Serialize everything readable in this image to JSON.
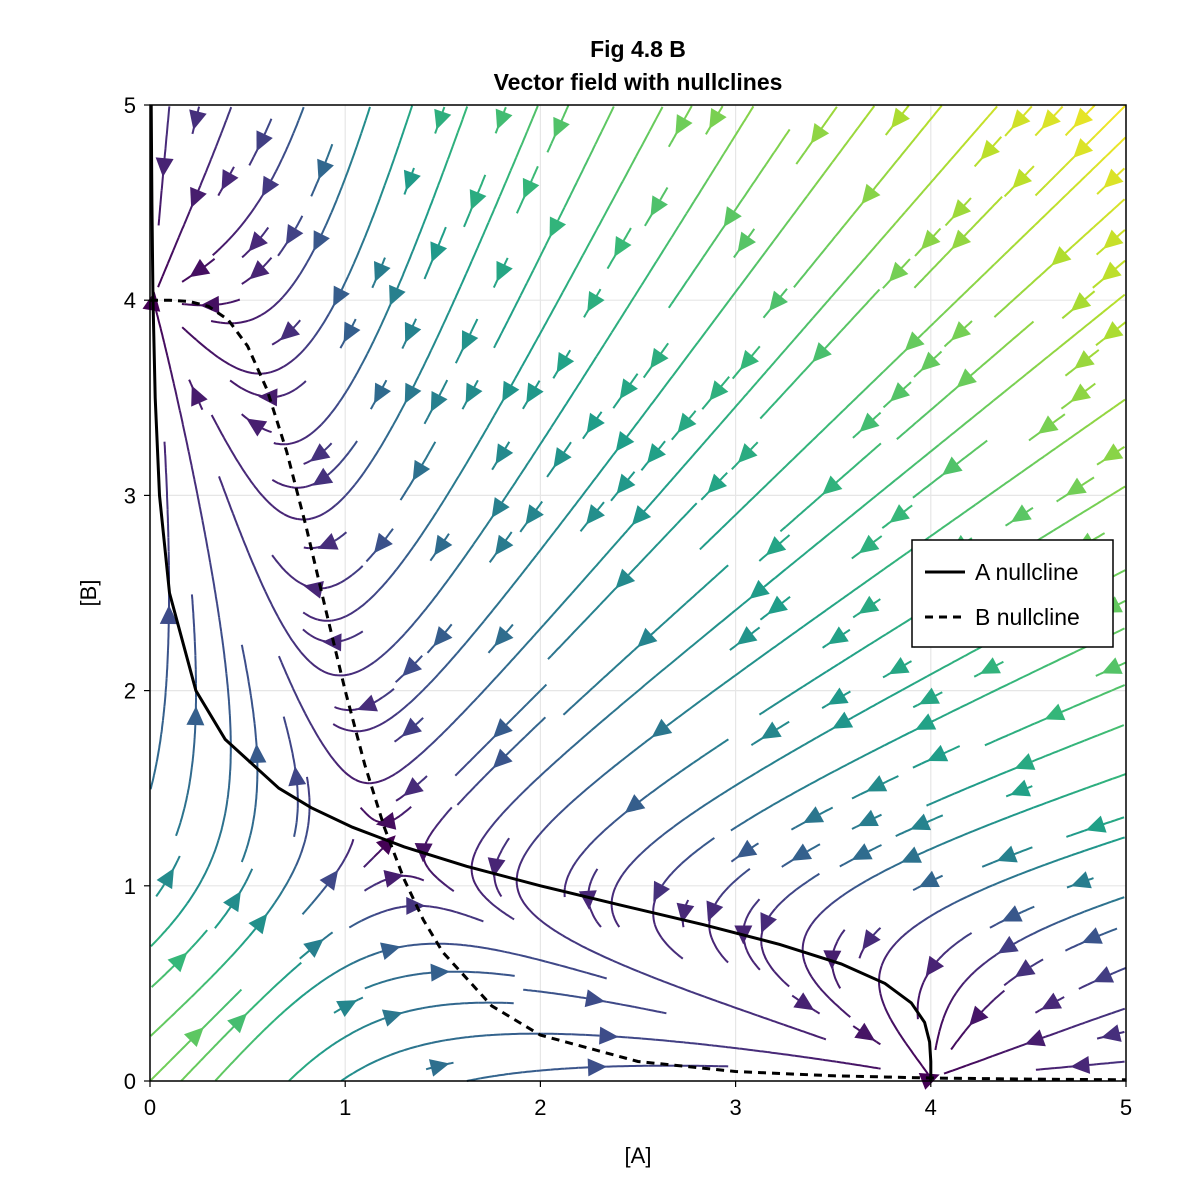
{
  "chart_data": {
    "type": "streamplot",
    "title": "Fig 4.8 B",
    "subtitle": "Vector field with nullclines",
    "xlabel": "[A]",
    "ylabel": "[B]",
    "xlim": [
      0,
      5
    ],
    "ylim": [
      0,
      5
    ],
    "xticks": [
      "0",
      "1",
      "2",
      "3",
      "4",
      "5"
    ],
    "yticks": [
      "0",
      "1",
      "2",
      "3",
      "4",
      "5"
    ],
    "grid": true,
    "colormap": "viridis",
    "color_by": "speed",
    "legend": {
      "placement": "right",
      "entries": [
        "A nullcline",
        "B nullcline"
      ]
    },
    "series": [
      {
        "name": "A nullcline",
        "style": "solid",
        "color": "#000000",
        "B": [
          0,
          0.1,
          0.2,
          0.3,
          0.4,
          0.5,
          0.6,
          0.7,
          0.8,
          0.9,
          1.0,
          1.1,
          1.2,
          1.3,
          1.4,
          1.5,
          1.75,
          2,
          2.5,
          3,
          3.5,
          4,
          4.5,
          5
        ],
        "A": [
          4,
          4.0,
          3.994,
          3.968,
          3.9,
          3.765,
          3.541,
          3.226,
          2.838,
          2.415,
          2.0,
          1.622,
          1.301,
          1.037,
          0.826,
          0.66,
          0.385,
          0.235,
          0.0998,
          0.0488,
          0.0265,
          0.0156,
          0.0097,
          0.0064
        ]
      },
      {
        "name": "B nullcline",
        "style": "dashed",
        "color": "#000000",
        "A": [
          0,
          0.1,
          0.2,
          0.3,
          0.4,
          0.5,
          0.6,
          0.7,
          0.8,
          0.9,
          1.0,
          1.1,
          1.2,
          1.3,
          1.4,
          1.5,
          1.75,
          2,
          2.5,
          3,
          3.5,
          4,
          4.5,
          5
        ],
        "B": [
          4,
          4.0,
          3.994,
          3.968,
          3.9,
          3.765,
          3.541,
          3.226,
          2.838,
          2.415,
          2.0,
          1.622,
          1.301,
          1.037,
          0.826,
          0.66,
          0.385,
          0.235,
          0.0998,
          0.0488,
          0.0265,
          0.0156,
          0.0097,
          0.0064
        ]
      }
    ]
  }
}
